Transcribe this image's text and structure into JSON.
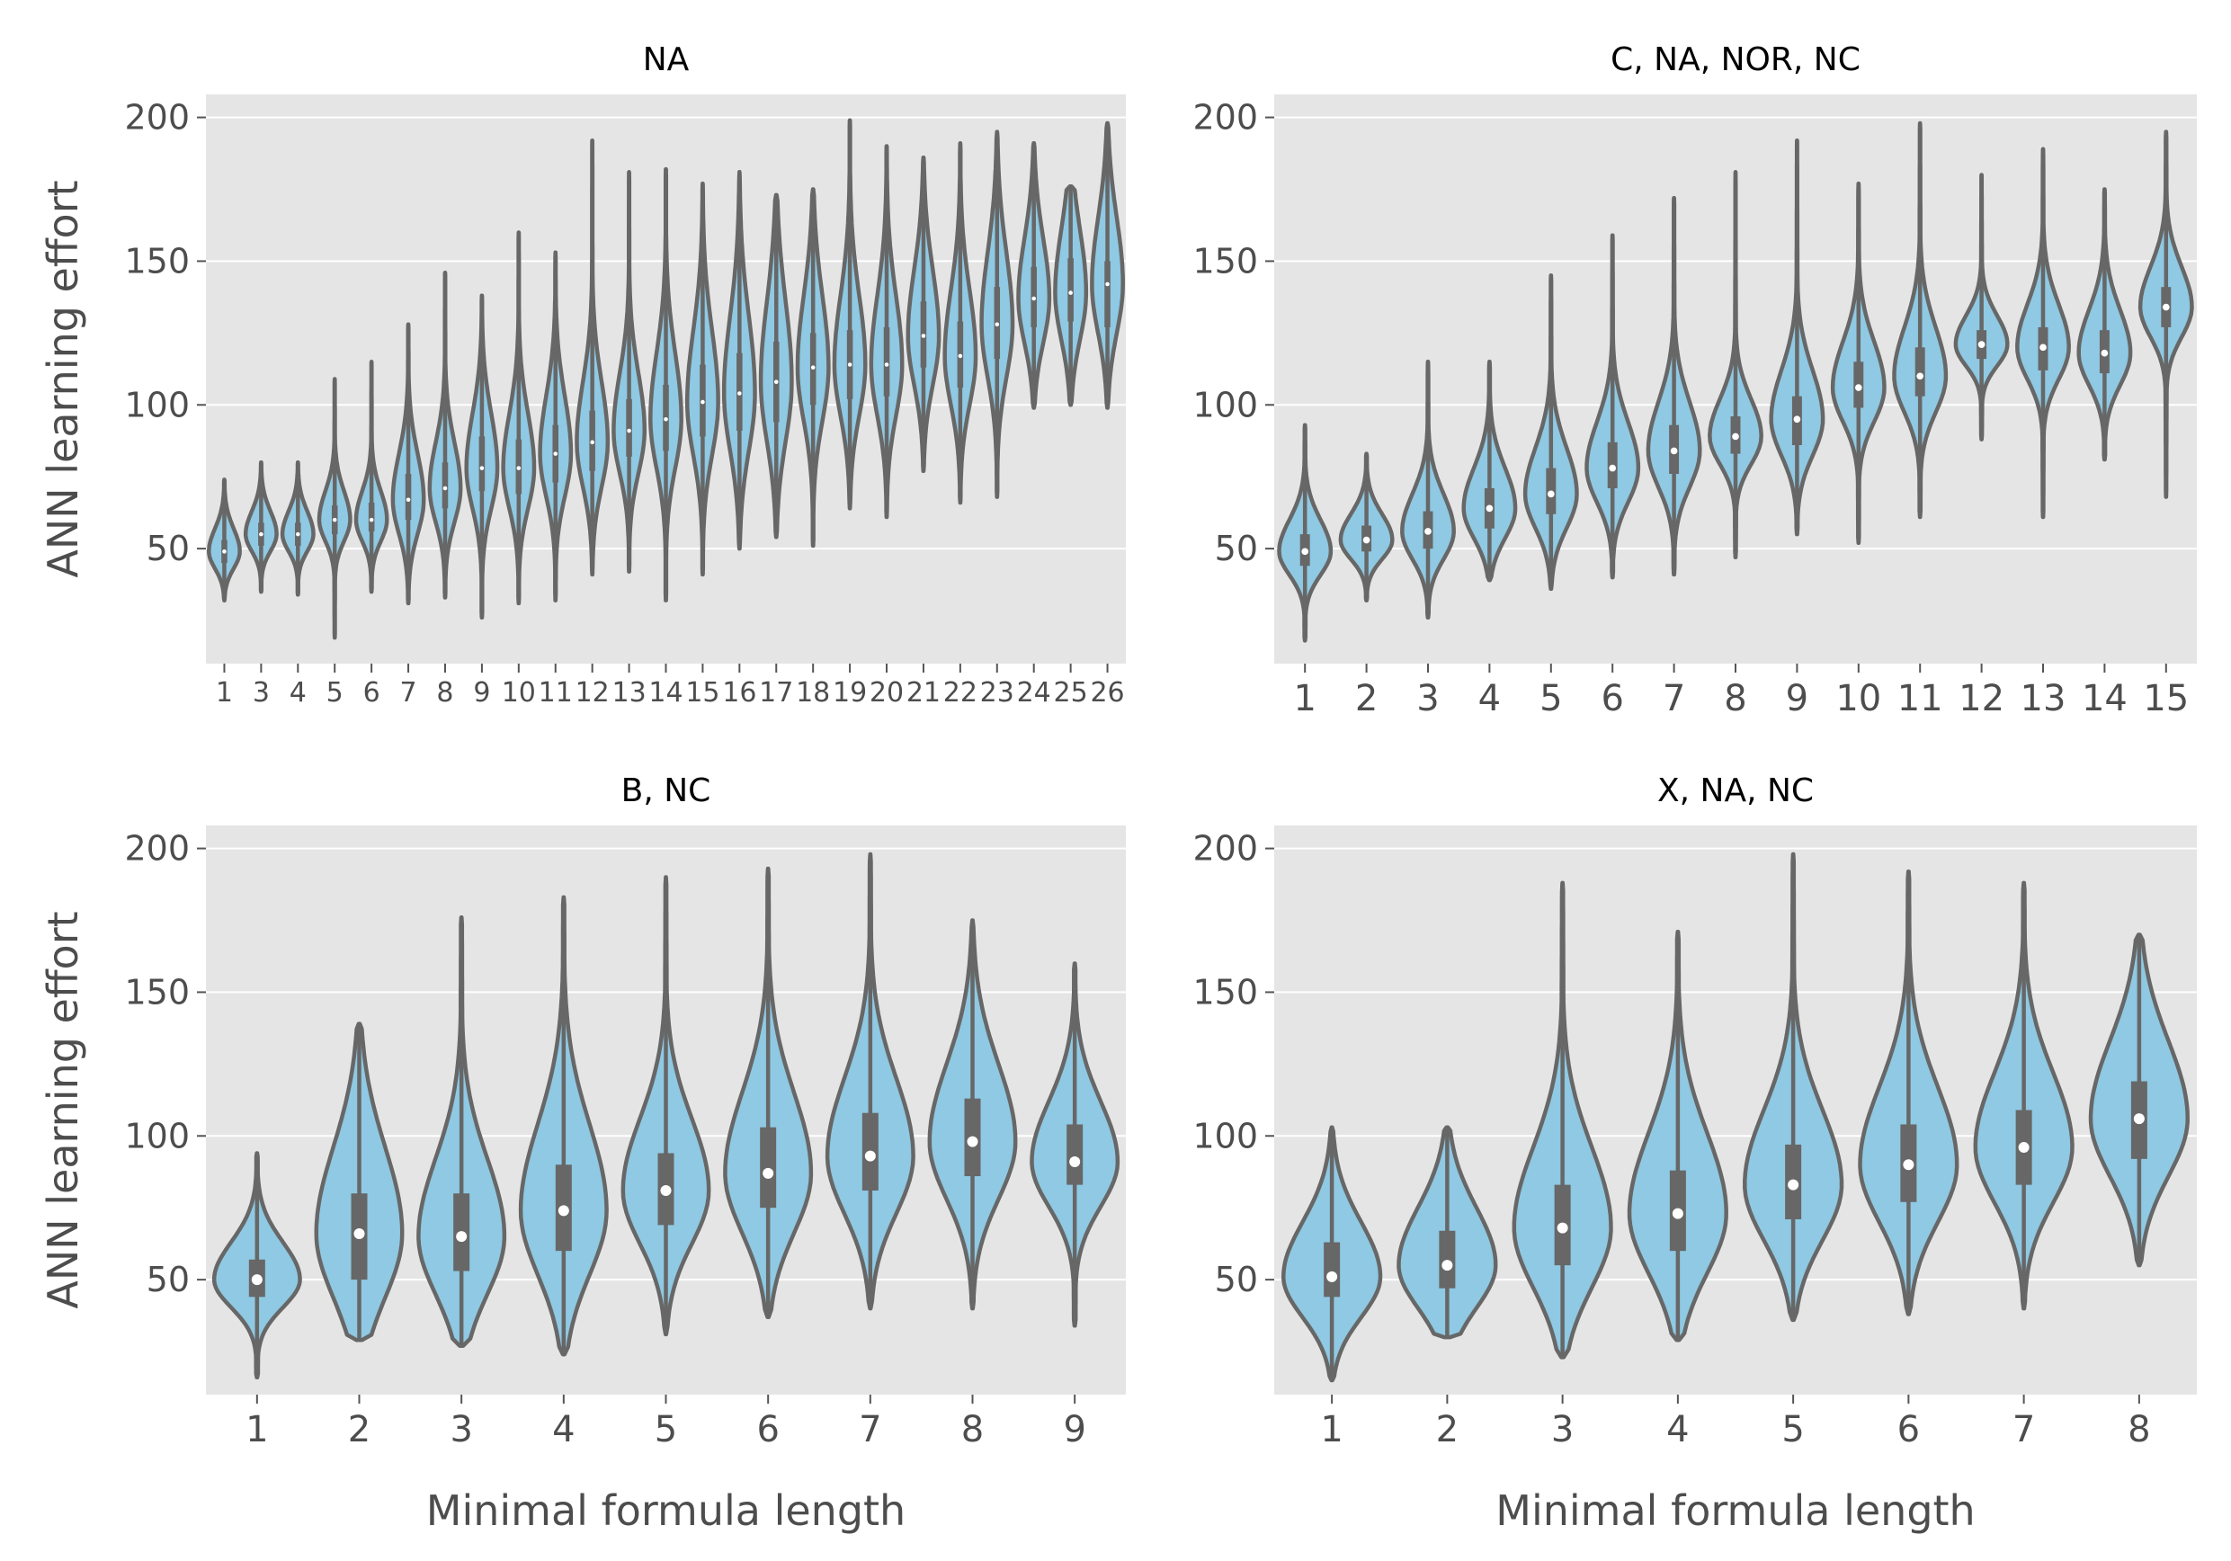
{
  "colors": {
    "panel_background": "#e5e5e5",
    "gridline": "#ffffff",
    "violin_fill": "#8fc9e3",
    "violin_outline": "#676767",
    "box": "#676767",
    "median_dot": "#ffffff",
    "tick_text": "#4d4d4d",
    "title_text": "#000000"
  },
  "chart_data": [
    {
      "type": "violin",
      "title": "NA",
      "xlabel": "",
      "ylabel": "ANN learning effort",
      "ylim": [
        10,
        208
      ],
      "yticks": [
        50,
        100,
        150,
        200
      ],
      "grid": true,
      "categories": [
        "1",
        "3",
        "4",
        "5",
        "6",
        "7",
        "8",
        "9",
        "10",
        "11",
        "12",
        "13",
        "14",
        "15",
        "16",
        "17",
        "18",
        "19",
        "20",
        "21",
        "22",
        "23",
        "24",
        "25",
        "26"
      ],
      "median": [
        49,
        55,
        55,
        60,
        60,
        67,
        71,
        78,
        78,
        83,
        87,
        91,
        95,
        101,
        104,
        108,
        113,
        114,
        114,
        124,
        117,
        128,
        137,
        139,
        142
      ],
      "q1": [
        45,
        51,
        51,
        55,
        56,
        60,
        64,
        70,
        69,
        73,
        77,
        82,
        84,
        89,
        91,
        94,
        100,
        102,
        103,
        113,
        106,
        116,
        127,
        129,
        127
      ],
      "q3": [
        53,
        59,
        59,
        65,
        66,
        76,
        80,
        89,
        88,
        93,
        98,
        102,
        107,
        114,
        118,
        122,
        125,
        126,
        127,
        136,
        129,
        141,
        148,
        151,
        150
      ],
      "min": [
        32,
        35,
        34,
        19,
        35,
        31,
        33,
        26,
        31,
        32,
        41,
        42,
        32,
        41,
        50,
        54,
        51,
        64,
        61,
        77,
        66,
        68,
        99,
        100,
        99
      ],
      "max": [
        74,
        80,
        80,
        109,
        115,
        128,
        146,
        138,
        160,
        153,
        192,
        181,
        182,
        177,
        181,
        173,
        175,
        199,
        190,
        186,
        191,
        195,
        191,
        176,
        198
      ]
    },
    {
      "type": "violin",
      "title": "C, NA, NOR, NC",
      "xlabel": "",
      "ylabel": "",
      "ylim": [
        10,
        208
      ],
      "yticks": [
        50,
        100,
        150,
        200
      ],
      "grid": true,
      "categories": [
        "1",
        "2",
        "3",
        "4",
        "5",
        "6",
        "7",
        "8",
        "9",
        "10",
        "11",
        "12",
        "13",
        "14",
        "15"
      ],
      "median": [
        49,
        53,
        56,
        64,
        69,
        78,
        84,
        89,
        95,
        106,
        110,
        121,
        120,
        118,
        134
      ],
      "q1": [
        44,
        49,
        50,
        57,
        62,
        71,
        76,
        83,
        86,
        99,
        103,
        116,
        112,
        111,
        127
      ],
      "q3": [
        55,
        58,
        63,
        71,
        78,
        87,
        93,
        96,
        103,
        115,
        120,
        126,
        127,
        126,
        141
      ],
      "min": [
        18,
        32,
        26,
        39,
        36,
        40,
        41,
        47,
        55,
        52,
        61,
        88,
        61,
        81,
        68
      ],
      "max": [
        93,
        83,
        115,
        115,
        145,
        159,
        172,
        181,
        192,
        177,
        198,
        180,
        189,
        175,
        195
      ]
    },
    {
      "type": "violin",
      "title": "B, NC",
      "xlabel": "Minimal formula length",
      "ylabel": "ANN learning effort",
      "ylim": [
        10,
        208
      ],
      "yticks": [
        50,
        100,
        150,
        200
      ],
      "grid": true,
      "categories": [
        "1",
        "2",
        "3",
        "4",
        "5",
        "6",
        "7",
        "8",
        "9"
      ],
      "median": [
        50,
        66,
        65,
        74,
        81,
        87,
        93,
        98,
        91
      ],
      "q1": [
        44,
        50,
        53,
        60,
        69,
        75,
        81,
        86,
        83
      ],
      "q3": [
        57,
        80,
        80,
        90,
        94,
        103,
        108,
        113,
        104
      ],
      "min": [
        16,
        29,
        27,
        24,
        31,
        37,
        40,
        40,
        34
      ],
      "max": [
        94,
        139,
        176,
        183,
        190,
        193,
        198,
        175,
        160
      ]
    },
    {
      "type": "violin",
      "title": "X, NA, NC",
      "xlabel": "Minimal formula length",
      "ylabel": "",
      "ylim": [
        10,
        208
      ],
      "yticks": [
        50,
        100,
        150,
        200
      ],
      "grid": true,
      "categories": [
        "1",
        "2",
        "3",
        "4",
        "5",
        "6",
        "7",
        "8"
      ],
      "median": [
        51,
        55,
        68,
        73,
        83,
        90,
        96,
        106
      ],
      "q1": [
        44,
        47,
        55,
        60,
        71,
        77,
        83,
        92
      ],
      "q3": [
        63,
        67,
        83,
        88,
        97,
        104,
        109,
        119
      ],
      "min": [
        15,
        30,
        23,
        29,
        36,
        38,
        40,
        55
      ],
      "max": [
        103,
        103,
        188,
        171,
        198,
        192,
        188,
        170
      ]
    }
  ]
}
